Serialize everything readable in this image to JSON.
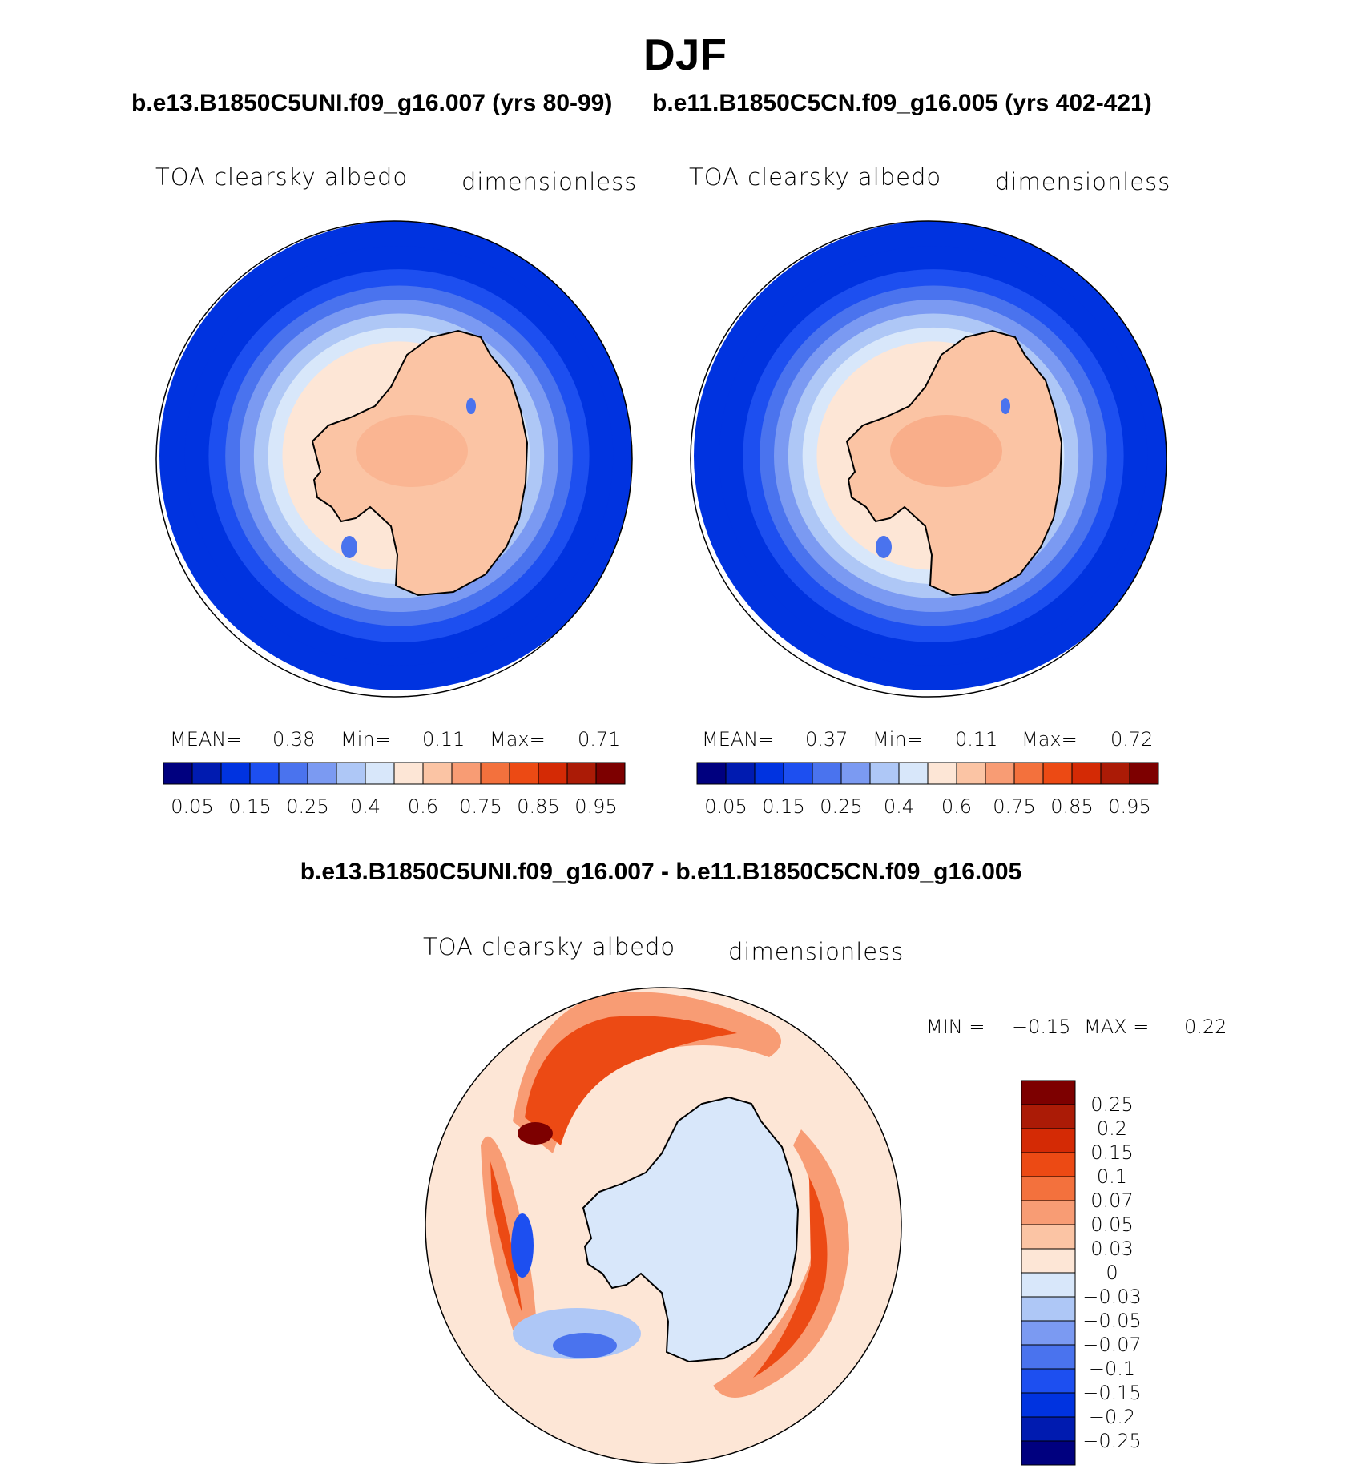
{
  "title": "DJF",
  "chart_data": [
    {
      "type": "heatmap",
      "title": "b.e13.B1850C5UNI.f09_g16.007 (yrs 80-99)",
      "variable": "TOA clearsky albedo",
      "units": "dimensionless",
      "stats": {
        "mean_label": "MEAN=",
        "mean": "0.38",
        "min_label": "Min=",
        "min": "0.11",
        "max_label": "Max=",
        "max": "0.71"
      },
      "colorbar_ticks": [
        "0.05",
        "0.15",
        "0.25",
        "0.4",
        "0.6",
        "0.75",
        "0.85",
        "0.95"
      ],
      "colorbar_levels": [
        0.05,
        0.1,
        0.15,
        0.2,
        0.25,
        0.3,
        0.4,
        0.5,
        0.6,
        0.7,
        0.75,
        0.8,
        0.85,
        0.9,
        0.95
      ],
      "colors": [
        "#00007f",
        "#001bb0",
        "#0033e0",
        "#1d4ff0",
        "#4a73ee",
        "#7b9af2",
        "#aec7f6",
        "#d8e7fa",
        "#fde6d6",
        "#fbc4a4",
        "#f89c74",
        "#f3713d",
        "#ec4a14",
        "#d42a05",
        "#ab1b06",
        "#7d0000"
      ],
      "region": "Antarctica / Southern Ocean (south polar stereographic)",
      "field_pattern": "Antarctic continent ~0.6-0.7; sea-ice ring 0.3-0.6; open ocean 0.1-0.15"
    },
    {
      "type": "heatmap",
      "title": "b.e11.B1850C5CN.f09_g16.005 (yrs 402-421)",
      "variable": "TOA clearsky albedo",
      "units": "dimensionless",
      "stats": {
        "mean_label": "MEAN=",
        "mean": "0.37",
        "min_label": "Min=",
        "min": "0.11",
        "max_label": "Max=",
        "max": "0.72"
      },
      "colorbar_ticks": [
        "0.05",
        "0.15",
        "0.25",
        "0.4",
        "0.6",
        "0.75",
        "0.85",
        "0.95"
      ],
      "colorbar_levels": [
        0.05,
        0.1,
        0.15,
        0.2,
        0.25,
        0.3,
        0.4,
        0.5,
        0.6,
        0.7,
        0.75,
        0.8,
        0.85,
        0.9,
        0.95
      ],
      "colors": [
        "#00007f",
        "#001bb0",
        "#0033e0",
        "#1d4ff0",
        "#4a73ee",
        "#7b9af2",
        "#aec7f6",
        "#d8e7fa",
        "#fde6d6",
        "#fbc4a4",
        "#f89c74",
        "#f3713d",
        "#ec4a14",
        "#d42a05",
        "#ab1b06",
        "#7d0000"
      ],
      "region": "Antarctica / Southern Ocean (south polar stereographic)",
      "field_pattern": "Antarctic continent ~0.6-0.75; sea-ice ring 0.3-0.6; open ocean 0.1-0.15"
    },
    {
      "type": "heatmap",
      "title": "b.e13.B1850C5UNI.f09_g16.007 - b.e11.B1850C5CN.f09_g16.005",
      "variable": "TOA clearsky albedo",
      "units": "dimensionless",
      "stats": {
        "min_label": "MIN =",
        "min": "−0.15",
        "max_label": "MAX =",
        "max": "0.22"
      },
      "colorbar_ticks": [
        "0.25",
        "0.2",
        "0.15",
        "0.1",
        "0.07",
        "0.05",
        "0.03",
        "0",
        "−0.03",
        "−0.05",
        "−0.07",
        "−0.1",
        "−0.15",
        "−0.2",
        "−0.25"
      ],
      "colors": [
        "#7d0000",
        "#ab1b06",
        "#d42a05",
        "#ec4a14",
        "#f3713d",
        "#f89c74",
        "#fbc4a4",
        "#fde6d6",
        "#d8e7fa",
        "#aec7f6",
        "#7b9af2",
        "#4a73ee",
        "#1d4ff0",
        "#0033e0",
        "#001bb0",
        "#00007f"
      ],
      "region": "Antarctica / Southern Ocean (south polar stereographic)",
      "field_pattern": "Continent ~-0.03 to 0; positive bands (0.1-0.22) along sea-ice margins near Antarctic Peninsula and East Antarctica; negative patches (-0.05 to -0.15) in Weddell/Ross sectors"
    }
  ]
}
